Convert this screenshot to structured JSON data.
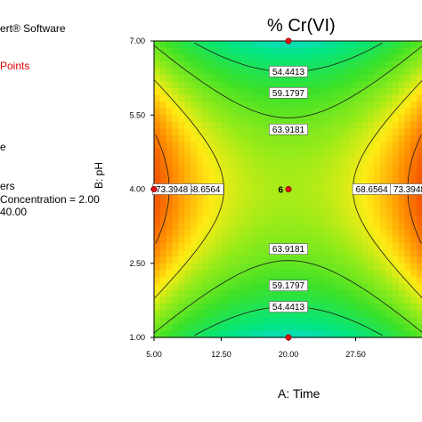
{
  "sidebar": {
    "software": "ert® Software",
    "points": "Points",
    "line_e": "e",
    "line_ers": "ers",
    "line_concentration": "Concentration = 2.00",
    "line_value": "40.00"
  },
  "chart_data": {
    "type": "contour",
    "title": "% Cr(VI)",
    "xlabel": "A: Time",
    "ylabel": "B: pH",
    "xlim": [
      5,
      35
    ],
    "ylim": [
      1,
      7
    ],
    "x_ticks": [
      "5.00",
      "12.50",
      "20.00",
      "27.50"
    ],
    "y_ticks": [
      "1.00",
      "2.50",
      "4.00",
      "5.50",
      "7.00"
    ],
    "contour_levels": [
      54.4413,
      59.1797,
      63.9181,
      68.6564,
      73.3948
    ],
    "contour_labels": [
      {
        "text": "54.4413",
        "x": 20.0,
        "y": 6.38
      },
      {
        "text": "59.1797",
        "x": 20.0,
        "y": 5.95
      },
      {
        "text": "63.9181",
        "x": 20.0,
        "y": 5.21
      },
      {
        "text": "68.6564",
        "x": 10.6,
        "y": 4.0
      },
      {
        "text": "73.3948",
        "x": 7.0,
        "y": 4.0
      },
      {
        "text": "68.6564",
        "x": 29.3,
        "y": 4.0
      },
      {
        "text": "73.3948",
        "x": 33.5,
        "y": 4.0
      },
      {
        "text": "63.9181",
        "x": 20.0,
        "y": 2.79
      },
      {
        "text": "59.1797",
        "x": 20.0,
        "y": 2.05
      },
      {
        "text": "54.4413",
        "x": 20.0,
        "y": 1.62
      }
    ],
    "design_points": [
      {
        "x": 20.0,
        "y": 7.0
      },
      {
        "x": 20.0,
        "y": 1.0
      },
      {
        "x": 5.0,
        "y": 4.0
      },
      {
        "x": 20.0,
        "y": 4.0,
        "label": "6"
      }
    ],
    "grid": false
  }
}
